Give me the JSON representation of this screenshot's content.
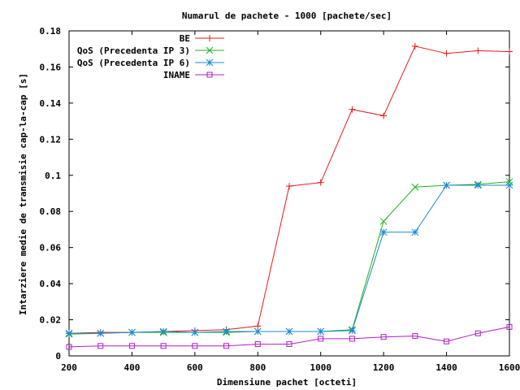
{
  "chart_data": {
    "type": "line",
    "title": "Numarul de pachete - 1000 [pachete/sec]",
    "xlabel": "Dimensiune pachet [octeti]",
    "ylabel": "Intarziere medie de transmisie cap-la-cap [s]",
    "xlim": [
      200,
      1600
    ],
    "ylim": [
      0,
      0.18
    ],
    "xticks": [
      "200",
      "400",
      "600",
      "800",
      "1000",
      "1200",
      "1400",
      "1600"
    ],
    "yticks": [
      "0",
      "0.02",
      "0.04",
      "0.06",
      "0.08",
      "0.1",
      "0.12",
      "0.14",
      "0.16",
      "0.18"
    ],
    "legend_position": "top-right",
    "grid": false,
    "x": [
      200,
      300,
      400,
      500,
      600,
      700,
      800,
      900,
      1000,
      1100,
      1200,
      1300,
      1400,
      1500,
      1600
    ],
    "series": [
      {
        "name": "BE",
        "color": "#e41a1c",
        "marker": "plus",
        "values": [
          0.0125,
          0.013,
          0.013,
          0.0135,
          0.014,
          0.0145,
          0.0165,
          0.094,
          0.096,
          0.1365,
          0.133,
          0.1715,
          0.1675,
          0.169,
          0.1685
        ]
      },
      {
        "name": "QoS (Precedenta IP 3)",
        "color": "#1cb41c",
        "marker": "cross",
        "values": [
          0.012,
          0.0125,
          0.013,
          0.013,
          0.013,
          0.013,
          0.0135,
          0.0135,
          0.0135,
          0.0145,
          0.0745,
          0.0935,
          0.0945,
          0.095,
          0.0965
        ]
      },
      {
        "name": "QoS (Precedenta IP 6)",
        "color": "#1e88d6",
        "marker": "star",
        "values": [
          0.0125,
          0.0125,
          0.013,
          0.0135,
          0.013,
          0.0135,
          0.0135,
          0.0135,
          0.0135,
          0.014,
          0.0685,
          0.0685,
          0.0945,
          0.0945,
          0.0945
        ]
      },
      {
        "name": "INAME",
        "color": "#b21cc8",
        "marker": "square",
        "values": [
          0.005,
          0.0055,
          0.0055,
          0.0055,
          0.0055,
          0.0055,
          0.0065,
          0.0065,
          0.0095,
          0.0095,
          0.0105,
          0.011,
          0.008,
          0.0125,
          0.016
        ]
      }
    ]
  }
}
